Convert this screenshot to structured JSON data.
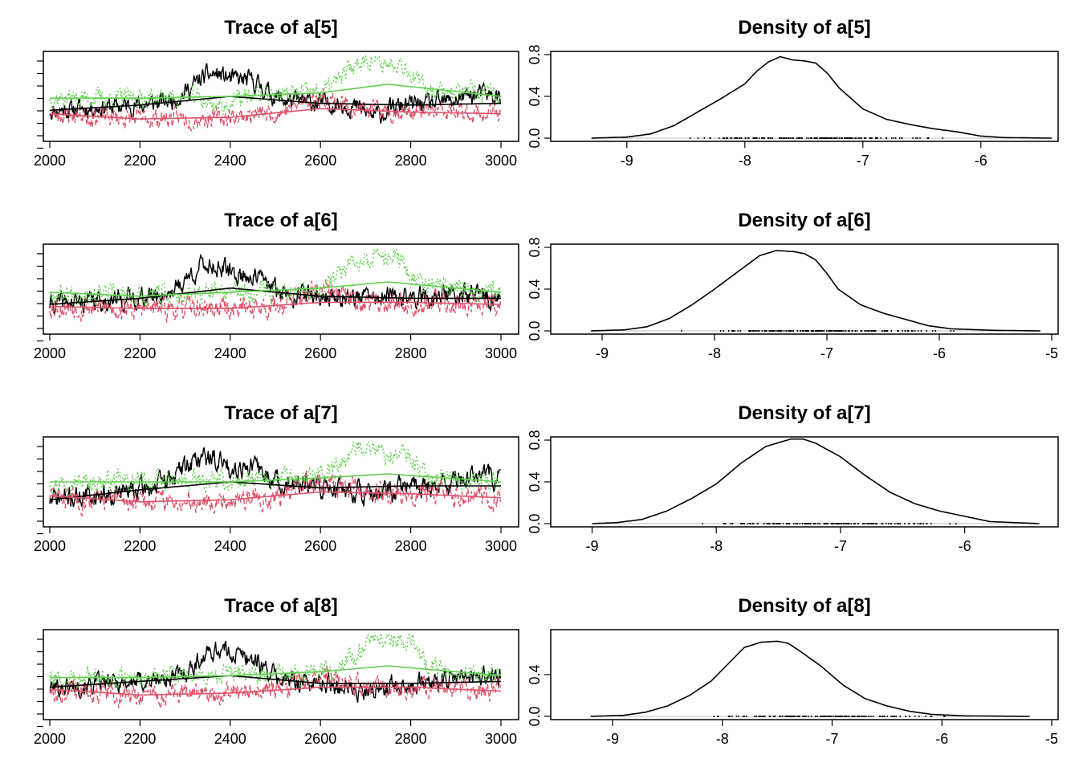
{
  "colors": {
    "chain_1": "#000000",
    "chain_2": "#DF536B",
    "chain_3": "#61D04F",
    "rug": "#000000",
    "baseline": "#BEBEBE"
  },
  "chart_data": [
    {
      "type": "line",
      "title": "Trace of a[5]",
      "xlim": [
        2000,
        3000
      ],
      "x_ticks": [
        "2000",
        "2200",
        "2400",
        "2600",
        "2800",
        "3000"
      ],
      "y_ticks": [],
      "series": [
        {
          "color": "#000000",
          "style": "solid",
          "center": -7.55,
          "sd": 0.22,
          "seed": 11,
          "bumps": [
            [
              2360,
              60,
              0.75
            ],
            [
              2450,
              40,
              0.45
            ],
            [
              2720,
              40,
              -0.35
            ],
            [
              2950,
              60,
              0.3
            ]
          ],
          "smooth": [
            [
              2000,
              -7.7
            ],
            [
              2200,
              -7.55
            ],
            [
              2400,
              -7.3
            ],
            [
              2600,
              -7.5
            ],
            [
              2800,
              -7.55
            ],
            [
              3000,
              -7.5
            ]
          ]
        },
        {
          "color": "#DF536B",
          "style": "dashed",
          "center": -7.9,
          "sd": 0.22,
          "seed": 23,
          "bumps": [
            [
              2600,
              60,
              0.35
            ]
          ],
          "smooth": [
            [
              2000,
              -7.8
            ],
            [
              2200,
              -7.95
            ],
            [
              2400,
              -7.9
            ],
            [
              2600,
              -7.65
            ],
            [
              2800,
              -7.75
            ],
            [
              3000,
              -7.8
            ]
          ]
        },
        {
          "color": "#61D04F",
          "style": "dotted",
          "center": -7.3,
          "sd": 0.22,
          "seed": 37,
          "bumps": [
            [
              2700,
              60,
              0.9
            ],
            [
              2780,
              30,
              0.6
            ],
            [
              2380,
              40,
              -0.3
            ]
          ],
          "smooth": [
            [
              2000,
              -7.35
            ],
            [
              2200,
              -7.35
            ],
            [
              2400,
              -7.3
            ],
            [
              2600,
              -7.2
            ],
            [
              2750,
              -6.95
            ],
            [
              3000,
              -7.3
            ]
          ]
        }
      ]
    },
    {
      "type": "line",
      "title": "Density of a[5]",
      "xlim": [
        -9.4,
        -5.4
      ],
      "ylim": [
        0,
        0.8
      ],
      "x_ticks": [
        "-9",
        "-8",
        "-7",
        "-6"
      ],
      "y_ticks": [
        "0.0",
        "0.4",
        "0.8"
      ],
      "curve": [
        [
          -9.3,
          0.0
        ],
        [
          -9.0,
          0.01
        ],
        [
          -8.8,
          0.04
        ],
        [
          -8.6,
          0.12
        ],
        [
          -8.4,
          0.25
        ],
        [
          -8.2,
          0.38
        ],
        [
          -8.0,
          0.52
        ],
        [
          -7.9,
          0.64
        ],
        [
          -7.8,
          0.73
        ],
        [
          -7.7,
          0.78
        ],
        [
          -7.6,
          0.75
        ],
        [
          -7.5,
          0.74
        ],
        [
          -7.4,
          0.72
        ],
        [
          -7.3,
          0.62
        ],
        [
          -7.2,
          0.48
        ],
        [
          -7.0,
          0.28
        ],
        [
          -6.8,
          0.18
        ],
        [
          -6.6,
          0.13
        ],
        [
          -6.4,
          0.09
        ],
        [
          -6.2,
          0.06
        ],
        [
          -6.0,
          0.02
        ],
        [
          -5.8,
          0.005
        ],
        [
          -5.4,
          0.0
        ]
      ],
      "rug_range": [
        -8.8,
        -6.05
      ]
    },
    {
      "type": "line",
      "title": "Trace of a[6]",
      "xlim": [
        2000,
        3000
      ],
      "x_ticks": [
        "2000",
        "2200",
        "2400",
        "2600",
        "2800",
        "3000"
      ],
      "y_ticks": [],
      "series": [
        {
          "color": "#000000",
          "style": "solid",
          "center": -7.35,
          "sd": 0.2,
          "seed": 41,
          "bumps": [
            [
              2350,
              60,
              0.7
            ],
            [
              2450,
              40,
              0.35
            ],
            [
              2900,
              60,
              0.1
            ]
          ],
          "smooth": [
            [
              2000,
              -7.5
            ],
            [
              2200,
              -7.35
            ],
            [
              2400,
              -7.1
            ],
            [
              2600,
              -7.3
            ],
            [
              2800,
              -7.35
            ],
            [
              3000,
              -7.35
            ]
          ]
        },
        {
          "color": "#DF536B",
          "style": "dashed",
          "center": -7.65,
          "sd": 0.22,
          "seed": 53,
          "bumps": [
            [
              2600,
              60,
              0.3
            ]
          ],
          "smooth": [
            [
              2000,
              -7.55
            ],
            [
              2200,
              -7.6
            ],
            [
              2400,
              -7.6
            ],
            [
              2600,
              -7.45
            ],
            [
              2800,
              -7.45
            ],
            [
              3000,
              -7.5
            ]
          ]
        },
        {
          "color": "#61D04F",
          "style": "dotted",
          "center": -7.15,
          "sd": 0.2,
          "seed": 67,
          "bumps": [
            [
              2700,
              60,
              0.8
            ],
            [
              2770,
              30,
              0.5
            ]
          ],
          "smooth": [
            [
              2000,
              -7.2
            ],
            [
              2200,
              -7.3
            ],
            [
              2400,
              -7.2
            ],
            [
              2600,
              -7.1
            ],
            [
              2750,
              -6.95
            ],
            [
              3000,
              -7.2
            ]
          ]
        }
      ]
    },
    {
      "type": "line",
      "title": "Density of a[6]",
      "xlim": [
        -9.2,
        -5.0
      ],
      "ylim": [
        0,
        0.8
      ],
      "x_ticks": [
        "-9",
        "-8",
        "-7",
        "-6",
        "-5"
      ],
      "y_ticks": [
        "0.0",
        "0.4",
        "0.8"
      ],
      "curve": [
        [
          -9.1,
          0.0
        ],
        [
          -8.8,
          0.01
        ],
        [
          -8.6,
          0.04
        ],
        [
          -8.4,
          0.12
        ],
        [
          -8.2,
          0.25
        ],
        [
          -8.0,
          0.4
        ],
        [
          -7.8,
          0.56
        ],
        [
          -7.6,
          0.72
        ],
        [
          -7.45,
          0.77
        ],
        [
          -7.3,
          0.76
        ],
        [
          -7.2,
          0.74
        ],
        [
          -7.1,
          0.68
        ],
        [
          -7.0,
          0.55
        ],
        [
          -6.9,
          0.4
        ],
        [
          -6.7,
          0.25
        ],
        [
          -6.5,
          0.17
        ],
        [
          -6.3,
          0.11
        ],
        [
          -6.1,
          0.05
        ],
        [
          -5.9,
          0.02
        ],
        [
          -5.5,
          0.005
        ],
        [
          -5.1,
          0.0
        ]
      ],
      "rug_range": [
        -8.45,
        -5.75
      ]
    },
    {
      "type": "line",
      "title": "Trace of a[7]",
      "xlim": [
        2000,
        3000
      ],
      "x_ticks": [
        "2000",
        "2200",
        "2400",
        "2600",
        "2800",
        "3000"
      ],
      "y_ticks": [],
      "series": [
        {
          "color": "#000000",
          "style": "solid",
          "center": -7.35,
          "sd": 0.22,
          "seed": 71,
          "bumps": [
            [
              2340,
              70,
              0.75
            ],
            [
              2450,
              40,
              0.4
            ],
            [
              2720,
              40,
              -0.3
            ],
            [
              2950,
              60,
              0.3
            ]
          ],
          "smooth": [
            [
              2000,
              -7.6
            ],
            [
              2200,
              -7.35
            ],
            [
              2400,
              -7.15
            ],
            [
              2600,
              -7.3
            ],
            [
              2800,
              -7.25
            ],
            [
              3000,
              -7.25
            ]
          ]
        },
        {
          "color": "#DF536B",
          "style": "dashed",
          "center": -7.65,
          "sd": 0.22,
          "seed": 83,
          "bumps": [
            [
              2600,
              60,
              0.3
            ]
          ],
          "smooth": [
            [
              2000,
              -7.5
            ],
            [
              2200,
              -7.65
            ],
            [
              2400,
              -7.6
            ],
            [
              2600,
              -7.4
            ],
            [
              2800,
              -7.45
            ],
            [
              3000,
              -7.55
            ]
          ]
        },
        {
          "color": "#61D04F",
          "style": "dotted",
          "center": -7.15,
          "sd": 0.2,
          "seed": 97,
          "bumps": [
            [
              2700,
              60,
              0.85
            ],
            [
              2790,
              30,
              0.5
            ]
          ],
          "smooth": [
            [
              2000,
              -7.15
            ],
            [
              2200,
              -7.15
            ],
            [
              2400,
              -7.15
            ],
            [
              2600,
              -7.05
            ],
            [
              2750,
              -6.95
            ],
            [
              3000,
              -7.15
            ]
          ]
        }
      ]
    },
    {
      "type": "line",
      "title": "Density of a[7]",
      "xlim": [
        -9.1,
        -5.3
      ],
      "ylim": [
        0,
        0.8
      ],
      "x_ticks": [
        "-9",
        "-8",
        "-7",
        "-6"
      ],
      "y_ticks": [
        "0.0",
        "0.4",
        "0.8"
      ],
      "curve": [
        [
          -9.0,
          0.0
        ],
        [
          -8.8,
          0.01
        ],
        [
          -8.6,
          0.04
        ],
        [
          -8.4,
          0.12
        ],
        [
          -8.2,
          0.24
        ],
        [
          -8.0,
          0.38
        ],
        [
          -7.8,
          0.58
        ],
        [
          -7.6,
          0.74
        ],
        [
          -7.4,
          0.81
        ],
        [
          -7.3,
          0.81
        ],
        [
          -7.2,
          0.77
        ],
        [
          -7.0,
          0.64
        ],
        [
          -6.8,
          0.46
        ],
        [
          -6.6,
          0.3
        ],
        [
          -6.4,
          0.19
        ],
        [
          -6.2,
          0.12
        ],
        [
          -6.0,
          0.07
        ],
        [
          -5.8,
          0.02
        ],
        [
          -5.4,
          0.0
        ]
      ],
      "rug_range": [
        -8.45,
        -5.9
      ]
    },
    {
      "type": "line",
      "title": "Trace of a[8]",
      "xlim": [
        2000,
        3000
      ],
      "x_ticks": [
        "2000",
        "2200",
        "2400",
        "2600",
        "2800",
        "3000"
      ],
      "y_ticks": [],
      "series": [
        {
          "color": "#000000",
          "style": "solid",
          "center": -7.55,
          "sd": 0.2,
          "seed": 101,
          "bumps": [
            [
              2370,
              60,
              0.75
            ],
            [
              2450,
              40,
              0.4
            ],
            [
              2700,
              40,
              -0.3
            ],
            [
              2950,
              60,
              0.2
            ]
          ],
          "smooth": [
            [
              2000,
              -7.65
            ],
            [
              2200,
              -7.5
            ],
            [
              2400,
              -7.35
            ],
            [
              2600,
              -7.55
            ],
            [
              2800,
              -7.55
            ],
            [
              3000,
              -7.5
            ]
          ]
        },
        {
          "color": "#DF536B",
          "style": "dashed",
          "center": -7.85,
          "sd": 0.22,
          "seed": 113,
          "bumps": [
            [
              2600,
              60,
              0.3
            ]
          ],
          "smooth": [
            [
              2000,
              -7.7
            ],
            [
              2200,
              -7.85
            ],
            [
              2400,
              -7.8
            ],
            [
              2600,
              -7.65
            ],
            [
              2800,
              -7.65
            ],
            [
              3000,
              -7.75
            ]
          ]
        },
        {
          "color": "#61D04F",
          "style": "dotted",
          "center": -7.35,
          "sd": 0.2,
          "seed": 127,
          "bumps": [
            [
              2730,
              60,
              0.85
            ],
            [
              2800,
              25,
              0.6
            ]
          ],
          "smooth": [
            [
              2000,
              -7.4
            ],
            [
              2200,
              -7.4
            ],
            [
              2400,
              -7.35
            ],
            [
              2600,
              -7.25
            ],
            [
              2750,
              -7.1
            ],
            [
              3000,
              -7.35
            ]
          ]
        }
      ]
    },
    {
      "type": "line",
      "title": "Density of a[8]",
      "xlim": [
        -9.3,
        -5.0
      ],
      "ylim": [
        0,
        0.75
      ],
      "x_ticks": [
        "-9",
        "-8",
        "-7",
        "-6",
        "-5"
      ],
      "y_ticks": [
        "0.0",
        "0.4"
      ],
      "curve": [
        [
          -9.2,
          0.0
        ],
        [
          -8.9,
          0.01
        ],
        [
          -8.7,
          0.04
        ],
        [
          -8.5,
          0.1
        ],
        [
          -8.3,
          0.2
        ],
        [
          -8.1,
          0.34
        ],
        [
          -7.95,
          0.5
        ],
        [
          -7.8,
          0.66
        ],
        [
          -7.65,
          0.71
        ],
        [
          -7.5,
          0.72
        ],
        [
          -7.4,
          0.7
        ],
        [
          -7.3,
          0.63
        ],
        [
          -7.1,
          0.48
        ],
        [
          -6.9,
          0.3
        ],
        [
          -6.7,
          0.17
        ],
        [
          -6.5,
          0.1
        ],
        [
          -6.3,
          0.05
        ],
        [
          -6.1,
          0.02
        ],
        [
          -5.8,
          0.005
        ],
        [
          -5.2,
          0.0
        ]
      ],
      "rug_range": [
        -8.45,
        -5.7
      ]
    }
  ]
}
